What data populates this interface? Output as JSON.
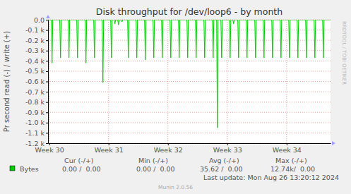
{
  "chart_data": {
    "type": "line",
    "title": "Disk throughput for /dev/loop6 - by month",
    "ylabel": "Pr second read (-) / write (+)",
    "watermark": "RRDTOOL / TOBI OETIKER",
    "footer": "Munin 2.0.56",
    "last_update": "Last update: Mon Aug 26 13:20:12 2024",
    "grid": true,
    "legend": "bottom",
    "legend_columns": [
      "Cur (-/+)",
      "Min (-/+)",
      "Avg (-/+)",
      "Max (-/+)"
    ],
    "xlim": [
      29.98,
      34.74
    ],
    "xticks": [
      {
        "value": 30,
        "label": "Week 30"
      },
      {
        "value": 31,
        "label": "Week 31"
      },
      {
        "value": 32,
        "label": "Week 32"
      },
      {
        "value": 33,
        "label": "Week 33"
      },
      {
        "value": 34,
        "label": "Week 34"
      }
    ],
    "ylim": [
      -1200,
      0
    ],
    "yticks": [
      {
        "value": 0,
        "label": "0.0"
      },
      {
        "value": -100,
        "label": "-0.1 k"
      },
      {
        "value": -200,
        "label": "-0.2 k"
      },
      {
        "value": -300,
        "label": "-0.3 k"
      },
      {
        "value": -400,
        "label": "-0.4 k"
      },
      {
        "value": -500,
        "label": "-0.5 k"
      },
      {
        "value": -600,
        "label": "-0.6 k"
      },
      {
        "value": -700,
        "label": "-0.7 k"
      },
      {
        "value": -800,
        "label": "-0.8 k"
      },
      {
        "value": -900,
        "label": "-0.9 k"
      },
      {
        "value": -1000,
        "label": "-1.0 k"
      },
      {
        "value": -1100,
        "label": "-1.1 k"
      },
      {
        "value": -1200,
        "label": "-1.2 k"
      }
    ],
    "x": [
      29.98,
      30.036,
      30.048,
      30.06,
      30.178,
      30.19,
      30.202,
      30.321,
      30.333,
      30.345,
      30.464,
      30.476,
      30.488,
      30.607,
      30.619,
      30.631,
      30.75,
      30.762,
      30.774,
      30.893,
      30.905,
      30.917,
      31.036,
      31.048,
      31.06,
      31.095,
      31.107,
      31.119,
      31.155,
      31.167,
      31.179,
      31.214,
      31.226,
      31.238,
      31.321,
      31.333,
      31.345,
      31.464,
      31.476,
      31.488,
      31.607,
      31.619,
      31.631,
      31.75,
      31.762,
      31.774,
      31.893,
      31.905,
      31.917,
      32.036,
      32.048,
      32.06,
      32.178,
      32.19,
      32.202,
      32.321,
      32.333,
      32.345,
      32.464,
      32.476,
      32.488,
      32.607,
      32.619,
      32.631,
      32.75,
      32.762,
      32.774,
      32.821,
      32.833,
      32.845,
      32.893,
      32.905,
      32.917,
      33.036,
      33.048,
      33.06,
      33.095,
      33.107,
      33.119,
      33.178,
      33.19,
      33.202,
      33.321,
      33.333,
      33.345,
      33.464,
      33.476,
      33.488,
      33.607,
      33.619,
      33.631,
      33.75,
      33.762,
      33.774,
      33.893,
      33.905,
      33.917,
      34.036,
      34.048,
      34.06,
      34.178,
      34.19,
      34.202,
      34.321,
      34.333,
      34.345,
      34.464,
      34.476,
      34.488,
      34.607,
      34.619,
      34.631,
      34.74
    ],
    "series": [
      {
        "name": "Bytes",
        "color": "#00cc00",
        "stats": [
          "0.00 /  0.00",
          "0.00 /  0.00",
          "35.62 /  0.00",
          "12.74k/  0.00"
        ],
        "values": [
          0,
          0,
          -420,
          0,
          0,
          -370,
          0,
          0,
          -370,
          0,
          0,
          -370,
          0,
          0,
          -420,
          0,
          0,
          -370,
          0,
          0,
          -610,
          0,
          0,
          -370,
          0,
          0,
          -40,
          0,
          0,
          -50,
          0,
          0,
          -20,
          0,
          0,
          -370,
          0,
          0,
          -370,
          0,
          0,
          -390,
          0,
          0,
          -370,
          0,
          0,
          -370,
          0,
          0,
          -370,
          0,
          0,
          -370,
          0,
          0,
          -370,
          0,
          0,
          -370,
          0,
          0,
          -370,
          0,
          0,
          -370,
          0,
          0,
          -1050,
          0,
          0,
          -370,
          0,
          0,
          -370,
          0,
          0,
          -40,
          0,
          0,
          -370,
          0,
          0,
          -370,
          0,
          0,
          -370,
          0,
          0,
          -370,
          0,
          0,
          -370,
          0,
          0,
          -370,
          0,
          0,
          -370,
          0,
          0,
          -370,
          0,
          0,
          -370,
          0,
          0,
          -370,
          0,
          0,
          -370,
          0,
          0
        ]
      }
    ]
  }
}
